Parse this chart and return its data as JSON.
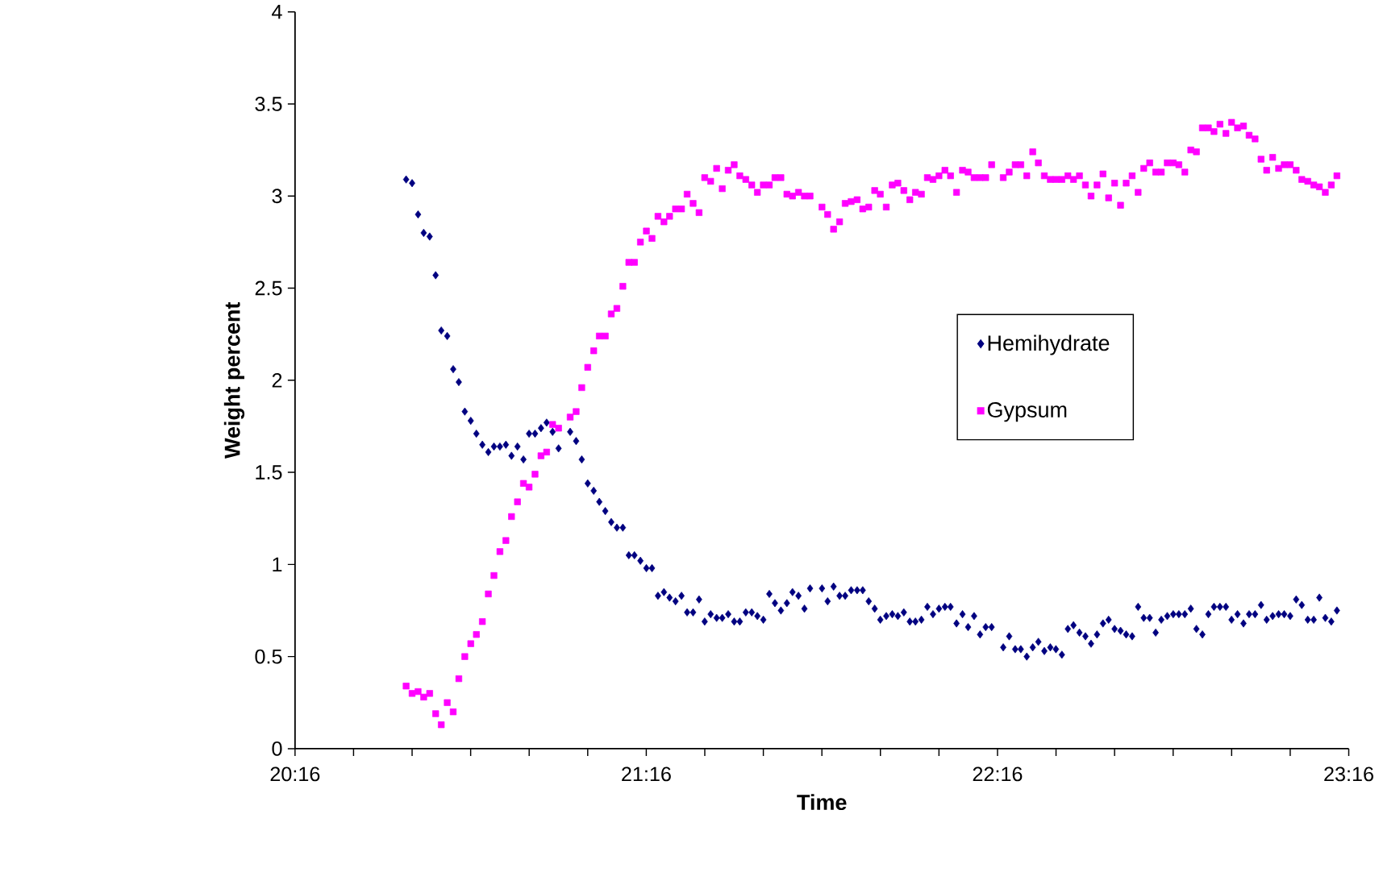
{
  "chart_data": {
    "type": "scatter",
    "xlabel": "Time",
    "ylabel": "Weight percent",
    "xlim": [
      20.2667,
      23.2667
    ],
    "ylim": [
      0,
      4
    ],
    "xticks": [
      {
        "value": 20.2667,
        "label": "20:16"
      },
      {
        "value": 20.4333,
        "label": null
      },
      {
        "value": 20.6,
        "label": null
      },
      {
        "value": 20.7667,
        "label": null
      },
      {
        "value": 20.9333,
        "label": null
      },
      {
        "value": 21.1,
        "label": null
      },
      {
        "value": 21.2667,
        "label": "21:16"
      },
      {
        "value": 21.4333,
        "label": null
      },
      {
        "value": 21.6,
        "label": null
      },
      {
        "value": 21.7667,
        "label": null
      },
      {
        "value": 21.9333,
        "label": null
      },
      {
        "value": 22.1,
        "label": null
      },
      {
        "value": 22.2667,
        "label": "22:16"
      },
      {
        "value": 22.4333,
        "label": null
      },
      {
        "value": 22.6,
        "label": null
      },
      {
        "value": 22.7667,
        "label": null
      },
      {
        "value": 22.9333,
        "label": null
      },
      {
        "value": 23.1,
        "label": null
      },
      {
        "value": 23.2667,
        "label": "23:16"
      }
    ],
    "yticks": [
      0,
      0.5,
      1,
      1.5,
      2,
      2.5,
      3,
      3.5,
      4
    ],
    "grid": false,
    "legend": "right",
    "series": [
      {
        "name": "Hemihydrate",
        "color": "#000080",
        "marker": "diamond",
        "x": [
          20.583,
          20.6,
          20.617,
          20.633,
          20.65,
          20.667,
          20.683,
          20.7,
          20.717,
          20.733,
          20.75,
          20.767,
          20.783,
          20.8,
          20.817,
          20.833,
          20.85,
          20.867,
          20.883,
          20.9,
          20.917,
          20.933,
          20.95,
          20.967,
          20.983,
          21.0,
          21.017,
          21.05,
          21.067,
          21.083,
          21.1,
          21.117,
          21.133,
          21.15,
          21.167,
          21.183,
          21.2,
          21.217,
          21.233,
          21.25,
          21.267,
          21.283,
          21.3,
          21.317,
          21.333,
          21.35,
          21.367,
          21.383,
          21.4,
          21.417,
          21.433,
          21.45,
          21.467,
          21.483,
          21.5,
          21.517,
          21.533,
          21.55,
          21.567,
          21.583,
          21.6,
          21.617,
          21.633,
          21.65,
          21.667,
          21.683,
          21.7,
          21.717,
          21.733,
          21.767,
          21.783,
          21.8,
          21.817,
          21.833,
          21.85,
          21.867,
          21.883,
          21.9,
          21.917,
          21.933,
          21.95,
          21.967,
          21.983,
          22.0,
          22.017,
          22.033,
          22.05,
          22.067,
          22.083,
          22.1,
          22.117,
          22.133,
          22.15,
          22.167,
          22.183,
          22.2,
          22.217,
          22.233,
          22.25,
          22.283,
          22.3,
          22.317,
          22.333,
          22.35,
          22.367,
          22.383,
          22.4,
          22.417,
          22.433,
          22.45,
          22.467,
          22.483,
          22.5,
          22.517,
          22.533,
          22.55,
          22.567,
          22.583,
          22.6,
          22.617,
          22.633,
          22.65,
          22.667,
          22.683,
          22.7,
          22.717,
          22.733,
          22.75,
          22.767,
          22.783,
          22.8,
          22.817,
          22.833,
          22.85,
          22.867,
          22.883,
          22.9,
          22.917,
          22.933,
          22.95,
          22.967,
          22.983,
          23.0,
          23.017,
          23.033,
          23.05,
          23.067,
          23.083,
          23.1,
          23.117,
          23.133,
          23.15,
          23.167,
          23.183,
          23.2,
          23.217,
          23.233
        ],
        "values": [
          3.09,
          3.07,
          2.9,
          2.8,
          2.78,
          2.57,
          2.27,
          2.24,
          2.06,
          1.99,
          1.83,
          1.78,
          1.71,
          1.65,
          1.61,
          1.64,
          1.64,
          1.65,
          1.59,
          1.64,
          1.57,
          1.71,
          1.71,
          1.74,
          1.77,
          1.72,
          1.63,
          1.72,
          1.67,
          1.57,
          1.44,
          1.4,
          1.34,
          1.29,
          1.23,
          1.2,
          1.2,
          1.05,
          1.05,
          1.02,
          0.98,
          0.98,
          0.83,
          0.85,
          0.82,
          0.8,
          0.83,
          0.74,
          0.74,
          0.81,
          0.69,
          0.73,
          0.71,
          0.71,
          0.73,
          0.69,
          0.69,
          0.74,
          0.74,
          0.72,
          0.7,
          0.84,
          0.79,
          0.75,
          0.79,
          0.85,
          0.83,
          0.76,
          0.87,
          0.87,
          0.8,
          0.88,
          0.83,
          0.83,
          0.86,
          0.86,
          0.86,
          0.8,
          0.76,
          0.7,
          0.72,
          0.73,
          0.72,
          0.74,
          0.69,
          0.69,
          0.7,
          0.77,
          0.73,
          0.76,
          0.77,
          0.77,
          0.68,
          0.73,
          0.66,
          0.72,
          0.62,
          0.66,
          0.66,
          0.55,
          0.61,
          0.54,
          0.54,
          0.5,
          0.55,
          0.58,
          0.53,
          0.55,
          0.54,
          0.51,
          0.65,
          0.67,
          0.63,
          0.61,
          0.57,
          0.62,
          0.68,
          0.7,
          0.65,
          0.64,
          0.62,
          0.61,
          0.77,
          0.71,
          0.71,
          0.63,
          0.7,
          0.72,
          0.73,
          0.73,
          0.73,
          0.76,
          0.65,
          0.62,
          0.73,
          0.77,
          0.77,
          0.77,
          0.7,
          0.73,
          0.68,
          0.73,
          0.73,
          0.78,
          0.7,
          0.72,
          0.73,
          0.73,
          0.72,
          0.81,
          0.78,
          0.7,
          0.7,
          0.82,
          0.71,
          0.69,
          0.75
        ]
      },
      {
        "name": "Gypsum",
        "color": "#ff00ff",
        "marker": "square",
        "x": [
          20.583,
          20.6,
          20.617,
          20.633,
          20.65,
          20.667,
          20.683,
          20.7,
          20.717,
          20.733,
          20.75,
          20.767,
          20.783,
          20.8,
          20.817,
          20.833,
          20.85,
          20.867,
          20.883,
          20.9,
          20.917,
          20.933,
          20.95,
          20.967,
          20.983,
          21.0,
          21.017,
          21.05,
          21.067,
          21.083,
          21.1,
          21.117,
          21.133,
          21.15,
          21.167,
          21.183,
          21.2,
          21.217,
          21.233,
          21.25,
          21.267,
          21.283,
          21.3,
          21.317,
          21.333,
          21.35,
          21.367,
          21.383,
          21.4,
          21.417,
          21.433,
          21.45,
          21.467,
          21.483,
          21.5,
          21.517,
          21.533,
          21.55,
          21.567,
          21.583,
          21.6,
          21.617,
          21.633,
          21.65,
          21.667,
          21.683,
          21.7,
          21.717,
          21.733,
          21.767,
          21.783,
          21.8,
          21.817,
          21.833,
          21.85,
          21.867,
          21.883,
          21.9,
          21.917,
          21.933,
          21.95,
          21.967,
          21.983,
          22.0,
          22.017,
          22.033,
          22.05,
          22.067,
          22.083,
          22.1,
          22.117,
          22.133,
          22.15,
          22.167,
          22.183,
          22.2,
          22.217,
          22.233,
          22.25,
          22.283,
          22.3,
          22.317,
          22.333,
          22.35,
          22.367,
          22.383,
          22.4,
          22.417,
          22.433,
          22.45,
          22.467,
          22.483,
          22.5,
          22.517,
          22.533,
          22.55,
          22.567,
          22.583,
          22.6,
          22.617,
          22.633,
          22.65,
          22.667,
          22.683,
          22.7,
          22.717,
          22.733,
          22.75,
          22.767,
          22.783,
          22.8,
          22.817,
          22.833,
          22.85,
          22.867,
          22.883,
          22.9,
          22.917,
          22.933,
          22.95,
          22.967,
          22.983,
          23.0,
          23.017,
          23.033,
          23.05,
          23.067,
          23.083,
          23.1,
          23.117,
          23.133,
          23.15,
          23.167,
          23.183,
          23.2,
          23.217,
          23.233
        ],
        "values": [
          0.34,
          0.3,
          0.31,
          0.28,
          0.3,
          0.19,
          0.13,
          0.25,
          0.2,
          0.38,
          0.5,
          0.57,
          0.62,
          0.69,
          0.84,
          0.94,
          1.07,
          1.13,
          1.26,
          1.34,
          1.44,
          1.42,
          1.49,
          1.59,
          1.61,
          1.76,
          1.74,
          1.8,
          1.83,
          1.96,
          2.07,
          2.16,
          2.24,
          2.24,
          2.36,
          2.39,
          2.51,
          2.64,
          2.64,
          2.75,
          2.81,
          2.77,
          2.89,
          2.86,
          2.89,
          2.93,
          2.93,
          3.01,
          2.96,
          2.91,
          3.1,
          3.08,
          3.15,
          3.04,
          3.14,
          3.17,
          3.11,
          3.09,
          3.06,
          3.02,
          3.06,
          3.06,
          3.1,
          3.1,
          3.01,
          3.0,
          3.02,
          3.0,
          3.0,
          2.94,
          2.9,
          2.82,
          2.86,
          2.96,
          2.97,
          2.98,
          2.93,
          2.94,
          3.03,
          3.01,
          2.94,
          3.06,
          3.07,
          3.03,
          2.98,
          3.02,
          3.01,
          3.1,
          3.09,
          3.11,
          3.14,
          3.11,
          3.02,
          3.14,
          3.13,
          3.1,
          3.1,
          3.1,
          3.17,
          3.1,
          3.13,
          3.17,
          3.17,
          3.11,
          3.24,
          3.18,
          3.11,
          3.09,
          3.09,
          3.09,
          3.11,
          3.09,
          3.11,
          3.06,
          3.0,
          3.06,
          3.12,
          2.99,
          3.07,
          2.95,
          3.07,
          3.11,
          3.02,
          3.15,
          3.18,
          3.13,
          3.13,
          3.18,
          3.18,
          3.17,
          3.13,
          3.25,
          3.24,
          3.37,
          3.37,
          3.35,
          3.39,
          3.34,
          3.4,
          3.37,
          3.38,
          3.33,
          3.31,
          3.2,
          3.14,
          3.21,
          3.15,
          3.17,
          3.17,
          3.14,
          3.09,
          3.08,
          3.06,
          3.05,
          3.02,
          3.06,
          3.11
        ]
      }
    ]
  }
}
